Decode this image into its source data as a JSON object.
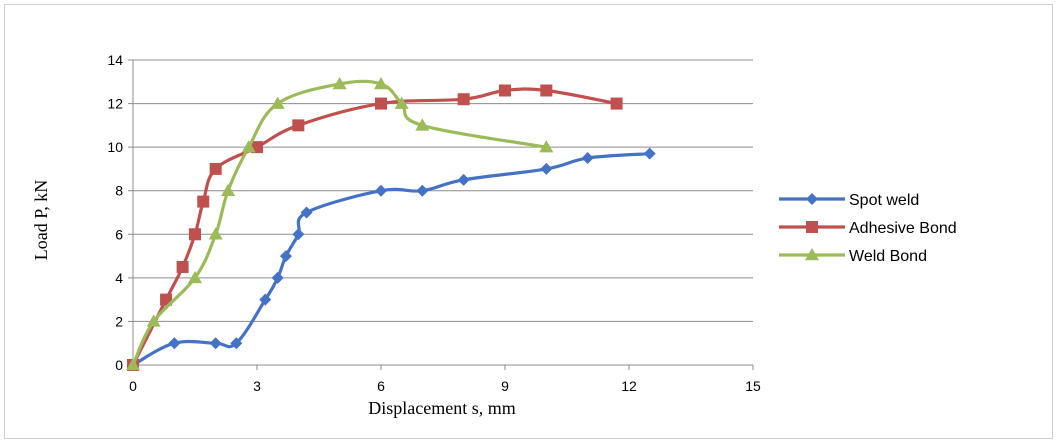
{
  "chart_data": {
    "type": "line",
    "xlabel": "Displacement s, mm",
    "ylabel": "Load P, kN",
    "xlim": [
      0,
      15
    ],
    "ylim": [
      0,
      14
    ],
    "xticks": [
      0,
      3,
      6,
      9,
      12,
      15
    ],
    "yticks": [
      0,
      2,
      4,
      6,
      8,
      10,
      12,
      14
    ],
    "grid": "horizontal",
    "legend_position": "right",
    "series": [
      {
        "name": "Spot weld",
        "color": "#4472c4",
        "marker": "diamond",
        "points": [
          [
            0,
            0
          ],
          [
            1,
            1
          ],
          [
            2,
            1
          ],
          [
            2.5,
            1
          ],
          [
            3.2,
            3
          ],
          [
            3.5,
            4
          ],
          [
            3.7,
            5
          ],
          [
            4,
            6
          ],
          [
            4.2,
            7
          ],
          [
            6,
            8
          ],
          [
            7,
            8
          ],
          [
            8,
            8.5
          ],
          [
            10,
            9
          ],
          [
            11,
            9.5
          ],
          [
            12.5,
            9.7
          ]
        ]
      },
      {
        "name": "Adhesive Bond",
        "color": "#c0504d",
        "marker": "square",
        "points": [
          [
            0,
            0
          ],
          [
            0.8,
            3
          ],
          [
            1.2,
            4.5
          ],
          [
            1.5,
            6
          ],
          [
            1.7,
            7.5
          ],
          [
            2,
            9
          ],
          [
            3,
            10
          ],
          [
            4,
            11
          ],
          [
            6,
            12
          ],
          [
            8,
            12.2
          ],
          [
            9,
            12.6
          ],
          [
            10,
            12.6
          ],
          [
            11.7,
            12
          ]
        ]
      },
      {
        "name": "Weld Bond",
        "color": "#9bbb59",
        "marker": "triangle",
        "points": [
          [
            0,
            0
          ],
          [
            0.5,
            2
          ],
          [
            1.5,
            4
          ],
          [
            2,
            6
          ],
          [
            2.3,
            8
          ],
          [
            2.8,
            10
          ],
          [
            3.5,
            12
          ],
          [
            5,
            12.9
          ],
          [
            6,
            12.9
          ],
          [
            6.5,
            12
          ],
          [
            7,
            11
          ],
          [
            10,
            10
          ]
        ]
      }
    ]
  }
}
